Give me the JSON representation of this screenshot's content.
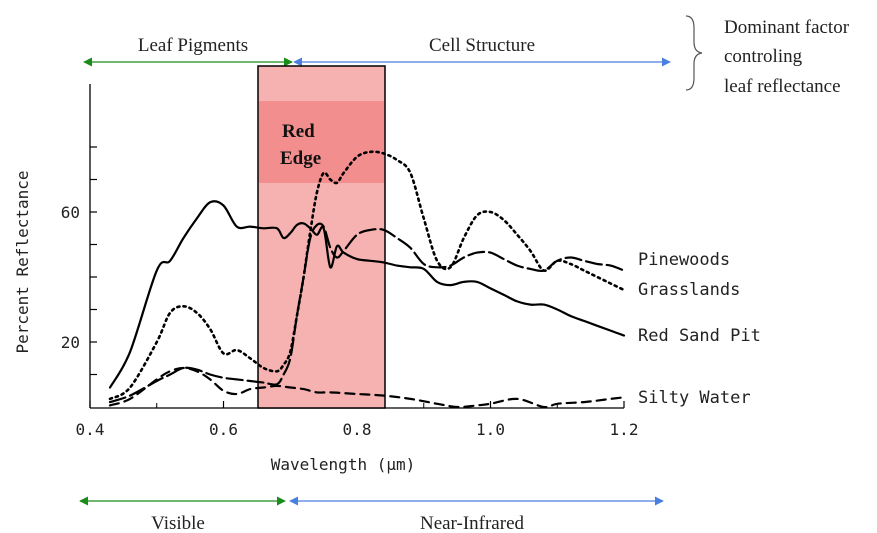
{
  "chart_data": {
    "type": "line",
    "xlabel": "Wavelength (μm)",
    "ylabel": "Percent Reflectance",
    "xlim": [
      0.4,
      1.2
    ],
    "ylim": [
      0,
      80
    ],
    "x_ticks": [
      0.4,
      0.6,
      0.8,
      1.0,
      1.2
    ],
    "x_tick_labels": [
      "0.4",
      "0.6",
      "0.8",
      "1.0",
      "1.2"
    ],
    "y_ticks": [
      20,
      60
    ],
    "y_tick_labels": [
      "20",
      "60"
    ],
    "series": [
      {
        "name": "Pinewoods",
        "style": "long-dash",
        "x": [
          0.43,
          0.46,
          0.5,
          0.52,
          0.54,
          0.56,
          0.58,
          0.6,
          0.62,
          0.64,
          0.66,
          0.68,
          0.69,
          0.7,
          0.71,
          0.72,
          0.73,
          0.74,
          0.75,
          0.76,
          0.77,
          0.78,
          0.8,
          0.82,
          0.84,
          0.86,
          0.88,
          0.9,
          0.92,
          0.94,
          0.96,
          0.98,
          1.0,
          1.02,
          1.04,
          1.06,
          1.08,
          1.1,
          1.12,
          1.14,
          1.16,
          1.18,
          1.2
        ],
        "y": [
          1.5,
          3.5,
          8,
          10,
          12,
          11.5,
          10,
          9,
          8.5,
          8,
          7.5,
          7,
          10,
          15,
          28,
          40,
          52,
          56,
          55.5,
          49,
          46,
          48,
          53,
          54.5,
          54.5,
          52,
          49,
          44,
          43,
          43.5,
          46,
          47.5,
          47.5,
          45.5,
          43.5,
          42.5,
          42,
          45,
          46,
          45,
          44,
          43.5,
          42
        ]
      },
      {
        "name": "Grasslands",
        "style": "dotted",
        "x": [
          0.43,
          0.46,
          0.5,
          0.52,
          0.54,
          0.56,
          0.58,
          0.6,
          0.62,
          0.64,
          0.66,
          0.68,
          0.69,
          0.7,
          0.71,
          0.72,
          0.73,
          0.74,
          0.75,
          0.76,
          0.77,
          0.78,
          0.8,
          0.82,
          0.84,
          0.86,
          0.88,
          0.9,
          0.92,
          0.94,
          0.96,
          0.98,
          1.0,
          1.02,
          1.04,
          1.06,
          1.08,
          1.1,
          1.12,
          1.14,
          1.16,
          1.18,
          1.2
        ],
        "y": [
          2.5,
          6,
          20,
          29,
          31,
          29,
          24,
          16.5,
          17.5,
          15,
          12,
          11,
          13,
          17,
          28,
          40,
          54,
          66,
          72,
          70,
          69,
          72,
          77,
          78.5,
          78,
          76,
          72,
          58,
          45,
          43,
          52,
          59,
          60,
          57.5,
          53,
          48,
          42,
          45,
          44,
          42,
          40,
          38,
          36
        ]
      },
      {
        "name": "Red Sand Pit",
        "style": "solid",
        "x": [
          0.43,
          0.46,
          0.5,
          0.52,
          0.54,
          0.56,
          0.58,
          0.6,
          0.62,
          0.64,
          0.66,
          0.68,
          0.69,
          0.7,
          0.71,
          0.72,
          0.73,
          0.74,
          0.75,
          0.76,
          0.77,
          0.78,
          0.8,
          0.82,
          0.84,
          0.86,
          0.88,
          0.9,
          0.92,
          0.94,
          0.96,
          0.98,
          1.0,
          1.02,
          1.04,
          1.06,
          1.08,
          1.1,
          1.12,
          1.14,
          1.16,
          1.18,
          1.2
        ],
        "y": [
          6,
          17,
          42,
          45,
          52,
          58,
          63,
          62,
          55.5,
          55.5,
          55,
          55,
          52,
          53.5,
          56,
          56.5,
          55,
          53,
          55,
          43,
          49.5,
          47.5,
          45.5,
          45,
          44.5,
          43.5,
          43,
          42.5,
          38.5,
          37.5,
          38.5,
          38.5,
          36.5,
          34.5,
          32.5,
          31.5,
          31.5,
          30,
          28,
          26.5,
          25,
          23.5,
          22
        ]
      },
      {
        "name": "Silty Water",
        "style": "dashed",
        "x": [
          0.43,
          0.46,
          0.5,
          0.52,
          0.54,
          0.56,
          0.58,
          0.6,
          0.62,
          0.64,
          0.66,
          0.68,
          0.7,
          0.72,
          0.74,
          0.76,
          0.8,
          0.84,
          0.88,
          0.92,
          0.95,
          0.98,
          1.0,
          1.04,
          1.08,
          1.1,
          1.14,
          1.18,
          1.2
        ],
        "y": [
          0.5,
          2.5,
          8.5,
          11,
          12,
          11,
          8.5,
          5,
          4,
          5.5,
          6,
          6.5,
          6,
          5.5,
          4.5,
          4.5,
          4,
          3.5,
          2.5,
          1,
          0,
          0.5,
          1,
          2.5,
          0,
          1,
          1.5,
          2.5,
          3
        ]
      }
    ],
    "highlight_region": {
      "label_line1": "Red",
      "label_line2": "Edge",
      "x_range": [
        0.66,
        0.85
      ]
    }
  },
  "annotations": {
    "leaf_pigments": "Leaf Pigments",
    "cell_structure": "Cell Structure",
    "dominant_line1": "Dominant factor",
    "dominant_line2": "controling",
    "dominant_line3": "leaf reflectance",
    "visible": "Visible",
    "near_infrared": "Near-Infrared"
  },
  "colors": {
    "green_arrow": "#1a8c1a",
    "blue_arrow": "#4a7fe0",
    "highlight_fill": "#f6b1b1",
    "highlight_band": "#f38e8e",
    "curve": "#000000"
  }
}
